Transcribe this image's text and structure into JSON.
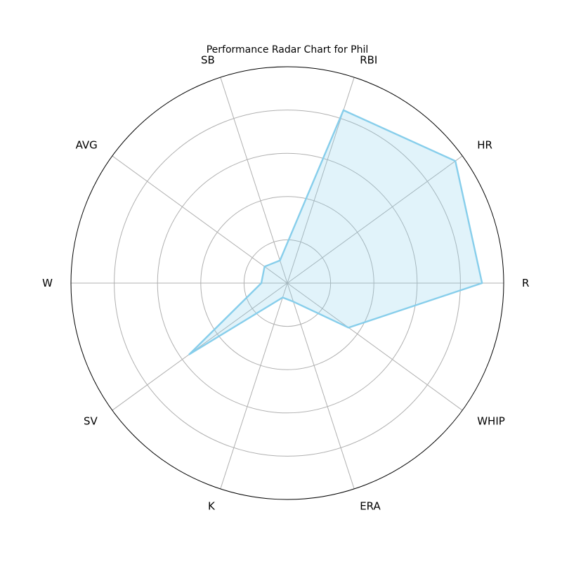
{
  "chart_data": {
    "type": "radar",
    "title": "Performance Radar Chart for Phil",
    "categories": [
      "R",
      "HR",
      "RBI",
      "SB",
      "AVG",
      "W",
      "SV",
      "K",
      "ERA",
      "WHIP"
    ],
    "series": [
      {
        "name": "Phil",
        "values": [
          0.9,
          0.96,
          0.84,
          0.11,
          0.13,
          0.12,
          0.56,
          0.07,
          0.09,
          0.35
        ]
      }
    ],
    "rlim": [
      0,
      1
    ],
    "grid_rings": [
      0.2,
      0.4,
      0.6,
      0.8,
      1.0
    ],
    "grid": true,
    "colors": {
      "line": "#87ceeb",
      "fill": "#87ceeb",
      "fill_opacity": 0.25
    }
  }
}
